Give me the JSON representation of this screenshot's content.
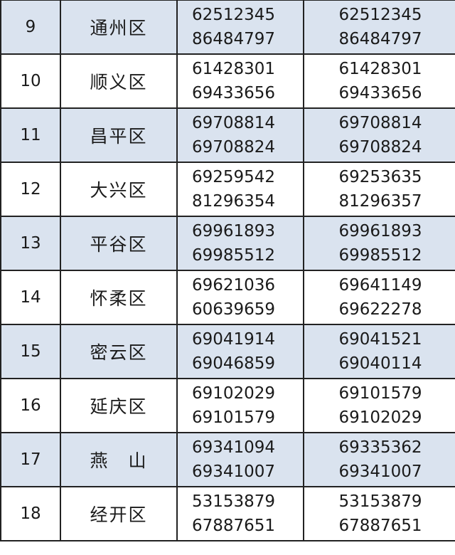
{
  "rows": [
    {
      "no": "9",
      "district": "通州区",
      "col_a": [
        "62512345",
        "86484797"
      ],
      "col_b": [
        "62512345",
        "86484797"
      ]
    },
    {
      "no": "10",
      "district": "顺义区",
      "col_a": [
        "61428301",
        "69433656"
      ],
      "col_b": [
        "61428301",
        "69433656"
      ]
    },
    {
      "no": "11",
      "district": "昌平区",
      "col_a": [
        "69708814",
        "69708824"
      ],
      "col_b": [
        "69708814",
        "69708824"
      ]
    },
    {
      "no": "12",
      "district": "大兴区",
      "col_a": [
        "69259542",
        "81296354"
      ],
      "col_b": [
        "69253635",
        "81296357"
      ]
    },
    {
      "no": "13",
      "district": "平谷区",
      "col_a": [
        "69961893",
        "69985512"
      ],
      "col_b": [
        "69961893",
        "69985512"
      ]
    },
    {
      "no": "14",
      "district": "怀柔区",
      "col_a": [
        "69621036",
        "60639659"
      ],
      "col_b": [
        "69641149",
        "69622278"
      ]
    },
    {
      "no": "15",
      "district": "密云区",
      "col_a": [
        "69041914",
        "69046859"
      ],
      "col_b": [
        "69041521",
        "69040114"
      ]
    },
    {
      "no": "16",
      "district": "延庆区",
      "col_a": [
        "69102029",
        "69101579"
      ],
      "col_b": [
        "69101579",
        "69102029"
      ]
    },
    {
      "no": "17",
      "district": "燕　山",
      "col_a": [
        "69341094",
        "69341007"
      ],
      "col_b": [
        "69335362",
        "69341007"
      ]
    },
    {
      "no": "18",
      "district": "经开区",
      "col_a": [
        "53153879",
        "67887651"
      ],
      "col_b": [
        "53153879",
        "67887651"
      ]
    }
  ],
  "colors": {
    "shaded_row": "#dae3ef",
    "border": "#222222"
  }
}
